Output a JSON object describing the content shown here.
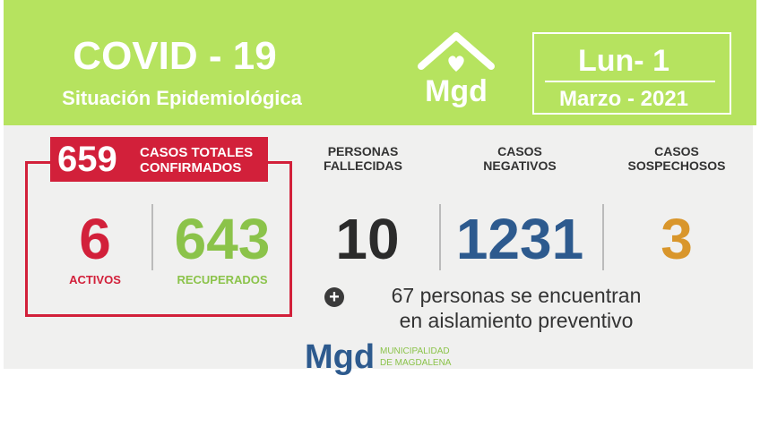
{
  "header": {
    "title": "COVID - 19",
    "subtitle": "Situación Epidemiológica",
    "logo_text": "Mgd",
    "date_day": "Lun- 1",
    "date_month": "Marzo - 2021"
  },
  "totals": {
    "value": "659",
    "label_line1": "CASOS TOTALES",
    "label_line2": "CONFIRMADOS"
  },
  "activos": {
    "value": "6",
    "label": "ACTIVOS"
  },
  "recuperados": {
    "value": "643",
    "label": "RECUPERADOS"
  },
  "fallecidas": {
    "heading": "PERSONAS\nFALLECIDAS",
    "value": "10"
  },
  "negativos": {
    "heading": "CASOS\nNEGATIVOS",
    "value": "1231"
  },
  "sospechosos": {
    "heading": "CASOS\nSOSPECHOSOS",
    "value": "3"
  },
  "aislamiento": {
    "line1": "67 personas se encuentran",
    "line2": "en aislamiento preventivo"
  },
  "footer_logo": {
    "text": "Mgd",
    "line1": "MUNICIPALIDAD",
    "line2": "DE MAGDALENA"
  },
  "colors": {
    "green": "#b6e35f",
    "red": "#d2203a",
    "recovered_green": "#8bc34a",
    "blue": "#2d5a8e",
    "orange": "#d9962b",
    "dark": "#2b2b2b"
  },
  "icons": [
    "house-heart-icon",
    "plus-circle-icon"
  ]
}
